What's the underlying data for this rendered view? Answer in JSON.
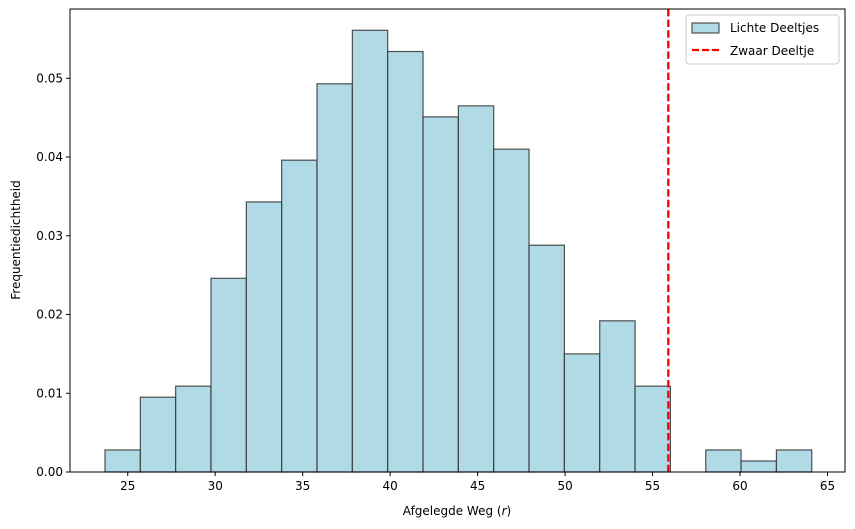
{
  "chart_data": {
    "type": "bar",
    "subtype": "histogram",
    "title": "",
    "xlabel": "Afgelegde Weg (r)",
    "xlabel_parts": {
      "text": "Afgelegde Weg (",
      "var": "r",
      "close": ")"
    },
    "ylabel": "Frequentiedichtheid",
    "xlim": [
      21.7,
      66.0
    ],
    "ylim": [
      0,
      0.0588
    ],
    "grid": false,
    "legend_position": "upper right",
    "xticks": [
      25,
      30,
      35,
      40,
      45,
      50,
      55,
      60,
      65
    ],
    "yticks": [
      0.0,
      0.01,
      0.02,
      0.03,
      0.04,
      0.05
    ],
    "ytick_labels": [
      "0.00",
      "0.01",
      "0.02",
      "0.03",
      "0.04",
      "0.05"
    ],
    "bin_start": 23.7,
    "bin_width": 2.02,
    "series": [
      {
        "name": "Lichte Deeltjes",
        "color": "#add8e6",
        "edgecolor": "#333333",
        "bin_edges": [
          23.7,
          25.72,
          27.74,
          29.76,
          31.78,
          33.8,
          35.82,
          37.84,
          39.86,
          41.88,
          43.9,
          45.92,
          47.94,
          49.96,
          51.98,
          54.0,
          56.02,
          58.04,
          60.06,
          62.08,
          64.1
        ],
        "values": [
          0.0028,
          0.0095,
          0.0109,
          0.0246,
          0.0343,
          0.0396,
          0.0493,
          0.0561,
          0.0534,
          0.0451,
          0.0465,
          0.041,
          0.0288,
          0.015,
          0.0192,
          0.0109,
          0.0,
          0.0028,
          0.0014,
          0.0028
        ]
      },
      {
        "name": "Zwaar Deeltje",
        "type": "vline",
        "x": 55.9,
        "color": "#ff0000",
        "linestyle": "dashed"
      }
    ]
  },
  "legend": {
    "items": [
      {
        "label": "Lichte Deeltjes",
        "kind": "patch"
      },
      {
        "label": "Zwaar Deeltje",
        "kind": "dashed-line"
      }
    ]
  }
}
